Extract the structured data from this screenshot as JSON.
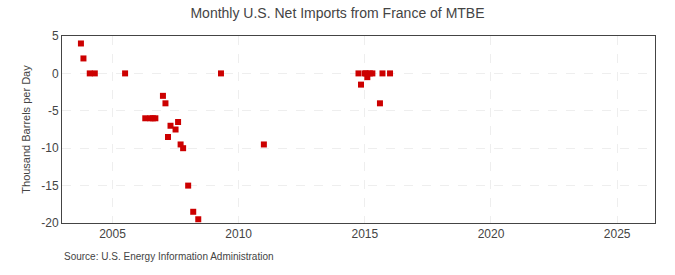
{
  "chart_data": {
    "type": "scatter",
    "title": "Monthly U.S. Net Imports from France of MTBE",
    "ylabel": "Thousand Barrels per Day",
    "annotations": [
      "Source: U.S. Energy Information Administration"
    ],
    "marker": "square",
    "color": "#cc0000",
    "grid": true,
    "xlim": [
      2003.0,
      2026.5
    ],
    "ylim": [
      -20,
      5
    ],
    "xticks": [
      2005,
      2010,
      2015,
      2020,
      2025
    ],
    "yticks": [
      -20,
      -15,
      -10,
      -5,
      0,
      5
    ],
    "x": [
      2003.75,
      2003.85,
      2004.1,
      2004.3,
      2005.5,
      2006.3,
      2006.5,
      2006.6,
      2006.7,
      2007.0,
      2007.1,
      2007.2,
      2007.3,
      2007.5,
      2007.6,
      2007.7,
      2007.8,
      2008.0,
      2008.2,
      2008.4,
      2009.3,
      2011.0,
      2014.75,
      2014.85,
      2015.0,
      2015.05,
      2015.1,
      2015.2,
      2015.3,
      2015.6,
      2015.7,
      2016.0
    ],
    "values": [
      4.0,
      2.0,
      0.0,
      0.0,
      0.0,
      -6.0,
      -6.0,
      -6.0,
      -6.0,
      -3.0,
      -4.0,
      -8.5,
      -7.0,
      -7.5,
      -6.5,
      -9.5,
      -10.0,
      -15.0,
      -18.5,
      -19.5,
      0.0,
      -9.5,
      0.0,
      -1.5,
      0.0,
      0.0,
      -0.5,
      0.0,
      0.0,
      -4.0,
      0.0,
      0.0
    ]
  }
}
